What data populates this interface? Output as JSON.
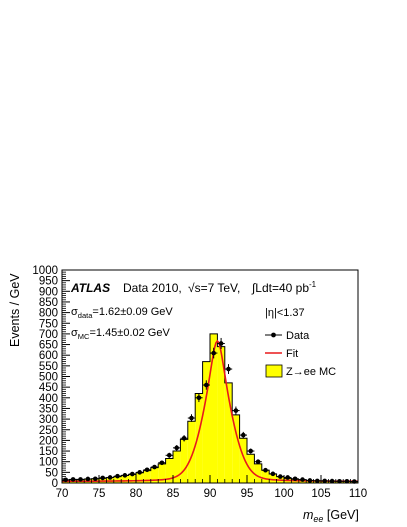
{
  "chart_data": {
    "type": "histogram",
    "title": "",
    "xlabel": "m_ee [GeV]",
    "xlabel_main": "m",
    "xlabel_sub": "ee",
    "xlabel_unit": " [GeV]",
    "ylabel": "Events / GeV",
    "xlim": [
      70,
      110
    ],
    "ylim": [
      0,
      1000
    ],
    "x_ticks": [
      70,
      75,
      80,
      85,
      90,
      95,
      100,
      105,
      110
    ],
    "y_ticks": [
      0,
      50,
      100,
      150,
      200,
      250,
      300,
      350,
      400,
      450,
      500,
      550,
      600,
      650,
      700,
      750,
      800,
      850,
      900,
      950,
      1000
    ],
    "grid": false,
    "legend_position": "right",
    "annotations": {
      "atlas": "ATLAS",
      "dataset": "Data 2010,",
      "energy": "√s=7 TeV,",
      "lumi": "∫Ldt=40 pb",
      "lumi_sup": "-1",
      "sigma_data": "σ",
      "sigma_data_sub": "data",
      "sigma_data_val": "=1.62±0.09 GeV",
      "sigma_mc": "σ",
      "sigma_mc_sub": "MC",
      "sigma_mc_val": "=1.45±0.02 GeV",
      "eta_cut": "|η|<1.37"
    },
    "legend": {
      "data": "Data",
      "fit": "Fit",
      "mc": "Z→ee MC"
    },
    "mc_bins": {
      "edges": [
        70,
        71,
        72,
        73,
        74,
        75,
        76,
        77,
        78,
        79,
        80,
        81,
        82,
        83,
        84,
        85,
        86,
        87,
        88,
        89,
        90,
        91,
        92,
        93,
        94,
        95,
        96,
        97,
        98,
        99,
        100,
        101,
        102,
        103,
        104,
        105,
        106,
        107,
        108,
        109,
        110
      ],
      "values": [
        14,
        15,
        16,
        18,
        20,
        22,
        25,
        30,
        35,
        40,
        48,
        58,
        72,
        90,
        115,
        150,
        205,
        290,
        420,
        570,
        700,
        640,
        470,
        320,
        210,
        135,
        90,
        60,
        42,
        30,
        22,
        17,
        14,
        12,
        10,
        9,
        8,
        7,
        7,
        6
      ]
    },
    "data_points": {
      "x": [
        70.5,
        71.5,
        72.5,
        73.5,
        74.5,
        75.5,
        76.5,
        77.5,
        78.5,
        79.5,
        80.5,
        81.5,
        82.5,
        83.5,
        84.5,
        85.5,
        86.5,
        87.5,
        88.5,
        89.5,
        90.5,
        91.5,
        92.5,
        93.5,
        94.5,
        95.5,
        96.5,
        97.5,
        98.5,
        99.5,
        100.5,
        101.5,
        102.5,
        103.5,
        104.5,
        105.5,
        106.5,
        107.5,
        108.5,
        109.5
      ],
      "y": [
        15,
        17,
        17,
        19,
        20,
        24,
        26,
        32,
        36,
        42,
        50,
        62,
        75,
        95,
        130,
        165,
        210,
        305,
        400,
        460,
        610,
        655,
        535,
        340,
        225,
        150,
        100,
        60,
        43,
        30,
        26,
        20,
        16,
        12,
        10,
        10,
        9,
        8,
        8,
        7
      ],
      "err": [
        4,
        4,
        4,
        4,
        4,
        5,
        5,
        6,
        6,
        7,
        7,
        8,
        9,
        10,
        12,
        13,
        15,
        18,
        20,
        22,
        25,
        26,
        23,
        19,
        15,
        12,
        10,
        8,
        7,
        6,
        5,
        5,
        4,
        4,
        3,
        3,
        3,
        3,
        3,
        3
      ]
    },
    "fit": {
      "peak": 91.0,
      "amplitude": 660,
      "sigma": 1.62,
      "gamma": 2.49
    },
    "colors": {
      "mc_fill": "#ffff00",
      "mc_line": "#000000",
      "fit": "#e8191b",
      "data": "#000000"
    }
  }
}
